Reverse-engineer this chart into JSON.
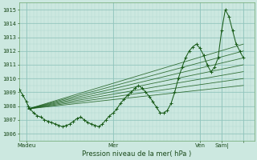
{
  "xlabel": "Pression niveau de la mer( hPa )",
  "ylim": [
    1005.5,
    1015.5
  ],
  "xlim": [
    0,
    130
  ],
  "yticks": [
    1006,
    1007,
    1008,
    1009,
    1010,
    1011,
    1012,
    1013,
    1014,
    1015
  ],
  "bg_color": "#cce8e0",
  "line_color": "#1a5c1a",
  "grid_color_minor": "#b0d8d0",
  "grid_color_major": "#90c4bc",
  "xtick_positions": [
    4,
    52,
    100,
    112,
    124
  ],
  "xtick_labels": [
    "Madeu",
    "Mer",
    "Ven",
    "Sam|",
    ""
  ],
  "forecast_lines": [
    [
      [
        5,
        1007.8
      ],
      [
        124,
        1011.0
      ]
    ],
    [
      [
        5,
        1007.8
      ],
      [
        124,
        1010.5
      ]
    ],
    [
      [
        5,
        1007.8
      ],
      [
        124,
        1011.5
      ]
    ],
    [
      [
        5,
        1007.8
      ],
      [
        124,
        1012.0
      ]
    ],
    [
      [
        5,
        1007.8
      ],
      [
        124,
        1012.5
      ]
    ],
    [
      [
        5,
        1007.8
      ],
      [
        124,
        1010.0
      ]
    ],
    [
      [
        5,
        1007.8
      ],
      [
        124,
        1009.5
      ]
    ]
  ],
  "main_line": [
    [
      0,
      1009.2
    ],
    [
      2,
      1008.8
    ],
    [
      4,
      1008.3
    ],
    [
      5,
      1008.0
    ],
    [
      6,
      1007.8
    ],
    [
      8,
      1007.5
    ],
    [
      10,
      1007.3
    ],
    [
      12,
      1007.2
    ],
    [
      14,
      1007.0
    ],
    [
      16,
      1006.9
    ],
    [
      18,
      1006.8
    ],
    [
      20,
      1006.7
    ],
    [
      22,
      1006.6
    ],
    [
      24,
      1006.5
    ],
    [
      26,
      1006.6
    ],
    [
      28,
      1006.7
    ],
    [
      30,
      1006.9
    ],
    [
      32,
      1007.1
    ],
    [
      34,
      1007.2
    ],
    [
      36,
      1007.0
    ],
    [
      38,
      1006.8
    ],
    [
      40,
      1006.7
    ],
    [
      42,
      1006.6
    ],
    [
      44,
      1006.5
    ],
    [
      46,
      1006.7
    ],
    [
      48,
      1007.0
    ],
    [
      50,
      1007.3
    ],
    [
      52,
      1007.5
    ],
    [
      54,
      1007.8
    ],
    [
      56,
      1008.2
    ],
    [
      58,
      1008.5
    ],
    [
      60,
      1008.8
    ],
    [
      62,
      1009.0
    ],
    [
      64,
      1009.3
    ],
    [
      66,
      1009.5
    ],
    [
      68,
      1009.3
    ],
    [
      70,
      1009.0
    ],
    [
      72,
      1008.7
    ],
    [
      74,
      1008.3
    ],
    [
      76,
      1007.9
    ],
    [
      78,
      1007.5
    ],
    [
      80,
      1007.5
    ],
    [
      82,
      1007.7
    ],
    [
      84,
      1008.2
    ],
    [
      86,
      1009.0
    ],
    [
      88,
      1010.0
    ],
    [
      90,
      1010.8
    ],
    [
      92,
      1011.5
    ],
    [
      94,
      1012.0
    ],
    [
      96,
      1012.3
    ],
    [
      98,
      1012.5
    ],
    [
      100,
      1012.2
    ],
    [
      102,
      1011.7
    ],
    [
      104,
      1011.0
    ],
    [
      106,
      1010.5
    ],
    [
      108,
      1010.8
    ],
    [
      110,
      1011.5
    ],
    [
      112,
      1013.5
    ],
    [
      114,
      1015.0
    ],
    [
      116,
      1014.5
    ],
    [
      118,
      1013.5
    ],
    [
      120,
      1012.5
    ],
    [
      122,
      1012.0
    ],
    [
      124,
      1011.5
    ]
  ]
}
